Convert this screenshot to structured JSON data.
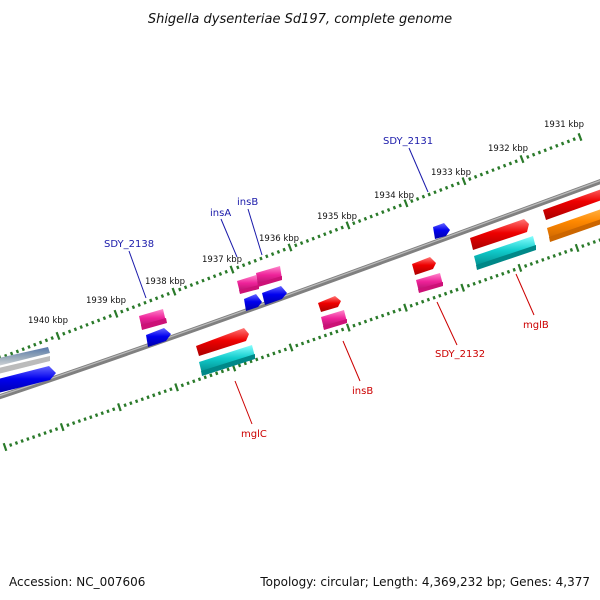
{
  "title": "Shigella dysenteriae Sd197, complete genome",
  "footer": {
    "accession": "Accession: NC_007606",
    "summary": "Topology: circular; Length: 4,369,232 bp; Genes: 4,377"
  },
  "scale_labels": [
    "1931 kbp",
    "1932 kbp",
    "1933 kbp",
    "1934 kbp",
    "1935 kbp",
    "1936 kbp",
    "1937 kbp",
    "1938 kbp",
    "1939 kbp",
    "1940 kbp"
  ],
  "upper_gene_labels": [
    {
      "text": "SDY_2131",
      "color": "#1a1aaa"
    },
    {
      "text": "insB",
      "color": "#1a1aaa"
    },
    {
      "text": "insA",
      "color": "#1a1aaa"
    },
    {
      "text": "SDY_2138",
      "color": "#1a1aaa"
    }
  ],
  "lower_gene_labels": [
    {
      "text": "mglB",
      "color": "#cc0000"
    },
    {
      "text": "SDY_2132",
      "color": "#cc0000"
    },
    {
      "text": "insB",
      "color": "#cc0000"
    },
    {
      "text": "mglC",
      "color": "#cc0000"
    }
  ],
  "colors": {
    "backbone": "#808080",
    "ticks": "#2a7a2a",
    "cds_forward": "#0000ee",
    "cds_reverse": "#ee0000",
    "rrna_magenta": "#ee2299",
    "cyan": "#11cccc",
    "orange": "#ff8800"
  }
}
